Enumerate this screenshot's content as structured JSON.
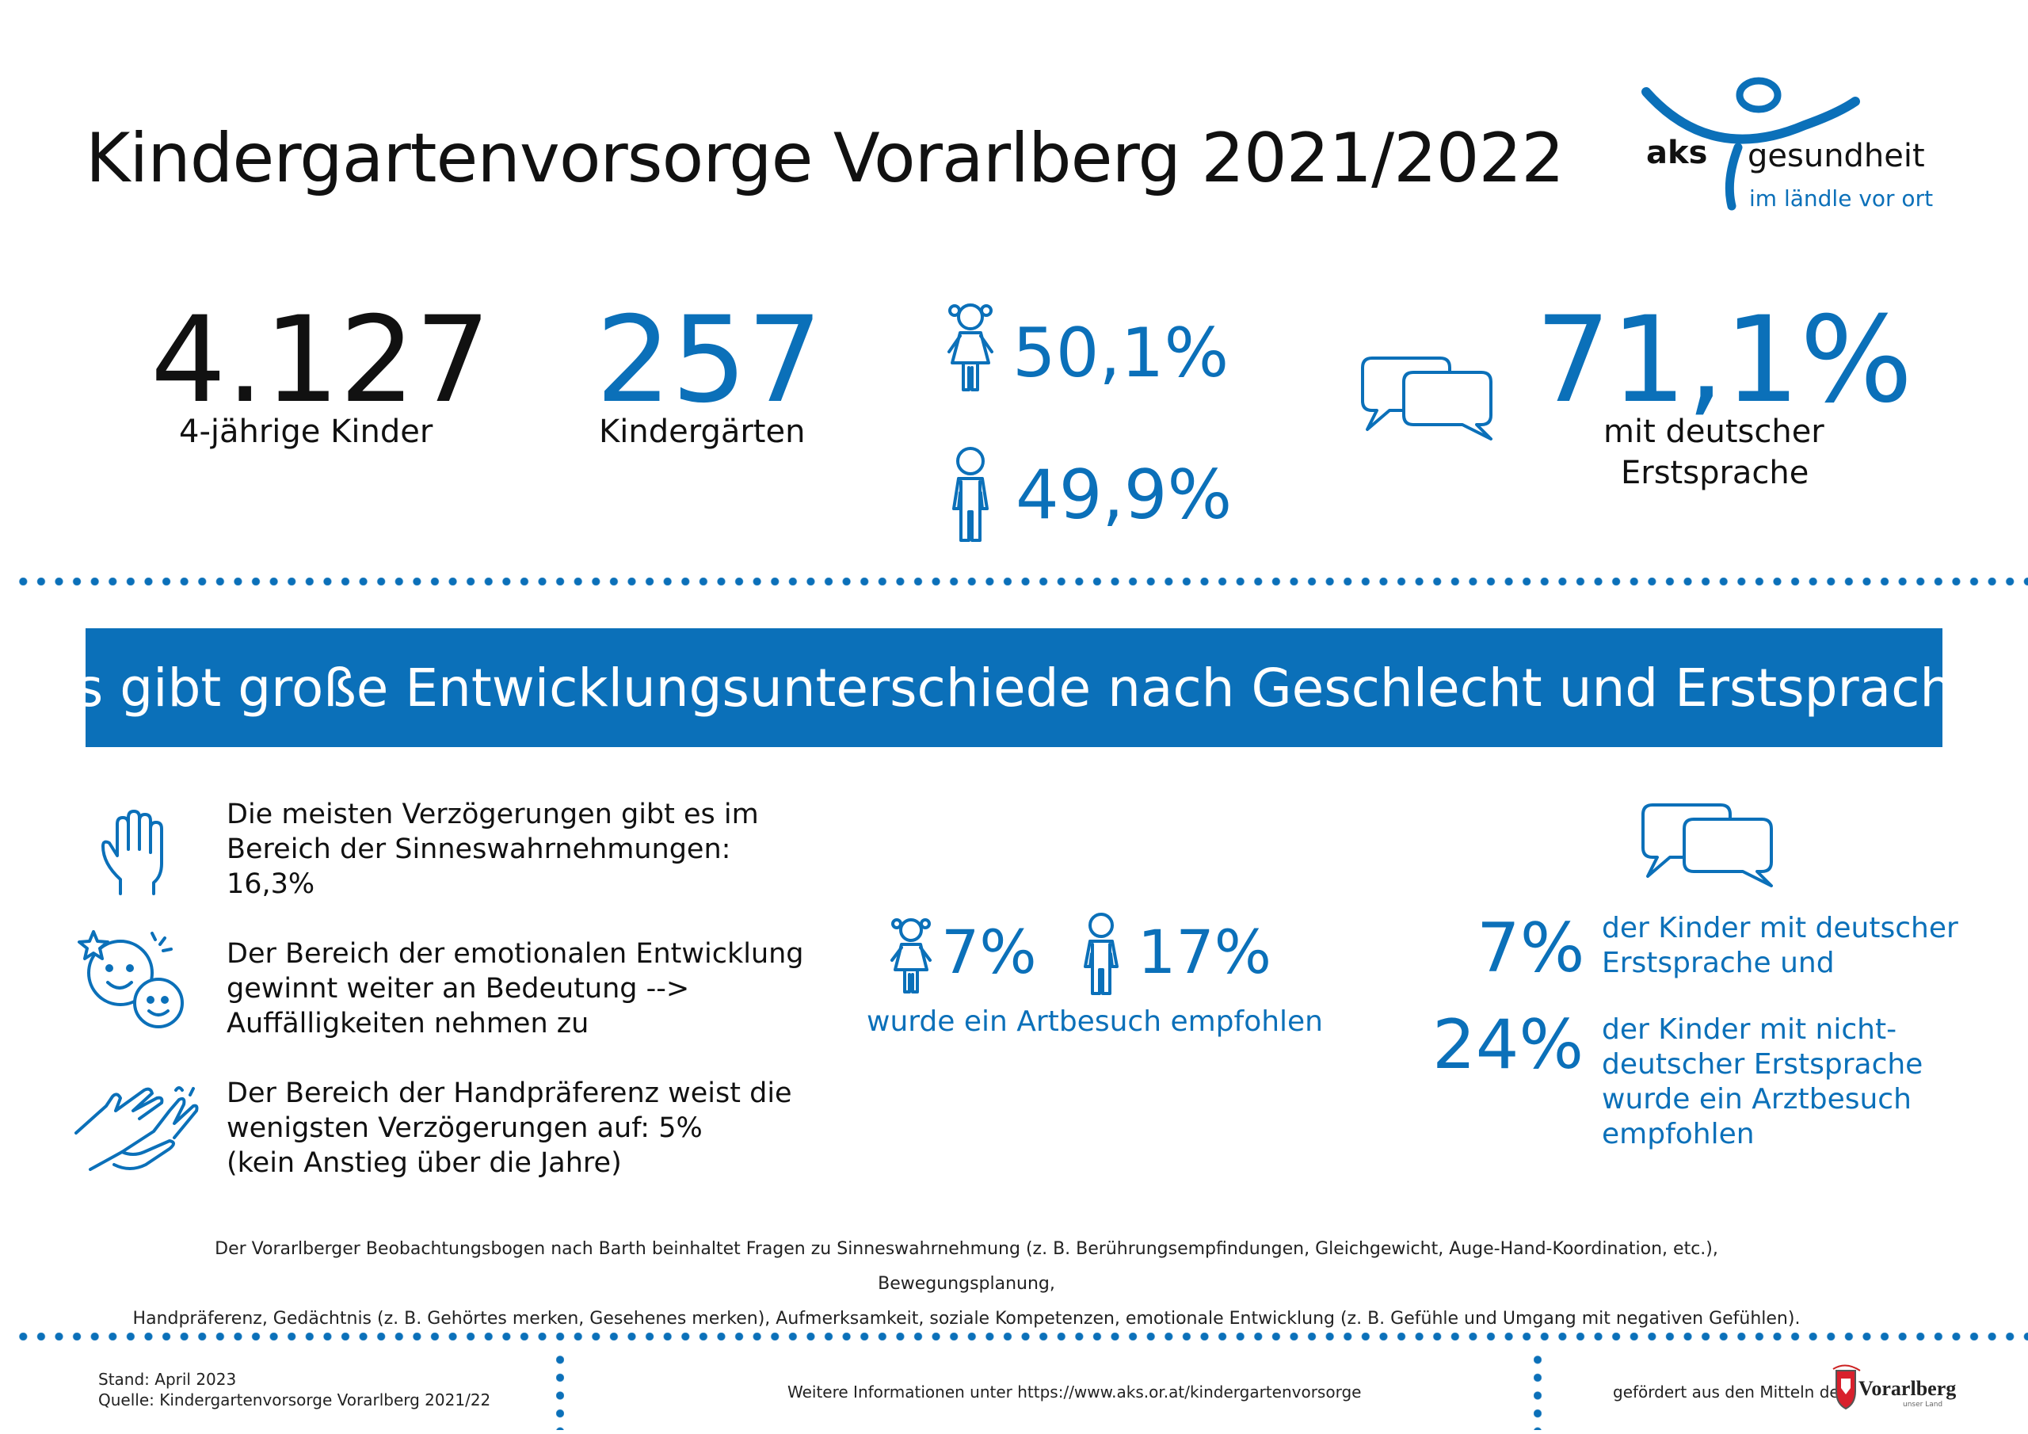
{
  "title": "Kindergartenvorsorge Vorarlberg 2021/2022",
  "logo": {
    "brand": "aks",
    "name": "gesundheit",
    "tagline": "im ländle vor ort"
  },
  "stats": {
    "children_value": "4.127",
    "children_label": "4-jährige Kinder",
    "kindergartens_value": "257",
    "kindergartens_label": "Kindergärten",
    "girls_pct": "50,1%",
    "boys_pct": "49,9%",
    "german_value": "71,1%",
    "german_label_1": "mit deutscher",
    "german_label_2": "Erstsprache"
  },
  "banner": "Es gibt große Entwicklungsunterschiede nach Geschlecht und Erstsprache",
  "findings": [
    {
      "icon": "hand-icon",
      "lines": [
        "Die meisten Verzögerungen gibt es im",
        "Bereich der Sinneswahrnehmungen:",
        "16,3%"
      ]
    },
    {
      "icon": "faces-icon",
      "lines": [
        "Der Bereich der emotionalen Entwicklung",
        "gewinnt weiter an Bedeutung -->",
        "Auffälligkeiten nehmen zu"
      ]
    },
    {
      "icon": "handshake-icon",
      "lines": [
        "Der Bereich der Handpräferenz weist die",
        "wenigsten Verzögerungen auf: 5%",
        "(kein Anstieg über die Jahre)"
      ]
    }
  ],
  "referral": {
    "girls_pct": "7%",
    "boys_pct": "17%",
    "caption": "wurde ein Artbesuch empfohlen"
  },
  "language_referral": {
    "german_pct": "7%",
    "german_lines": [
      "der Kinder mit deutscher",
      "Erstsprache und"
    ],
    "nongerman_pct": "24%",
    "nongerman_lines": [
      "der Kinder mit nicht-",
      "deutscher Erstsprache",
      "wurde ein Arztbesuch",
      "empfohlen"
    ]
  },
  "note_lines": [
    "Der Vorarlberger Beobachtungsbogen nach Barth beinhaltet Fragen zu Sinneswahrnehmung (z. B. Berührungsempfindungen, Gleichgewicht, Auge-Hand-Koordination, etc.),  Bewegungsplanung,",
    "Handpräferenz, Gedächtnis (z. B. Gehörtes merken, Gesehenes merken), Aufmerksamkeit,  soziale Kompetenzen, emotionale Entwicklung (z. B. Gefühle und Umgang mit negativen Gefühlen)."
  ],
  "footer": {
    "stand": "Stand: April 2023",
    "source": "Quelle: Kindergartenvorsorge Vorarlberg 2021/22",
    "more_info": "Weitere Informationen unter https://www.aks.or.at/kindergartenvorsorge",
    "funded": "gefördert aus den Mitteln des",
    "funder_logo": "Vorarlberg",
    "funder_tagline": "unser Land"
  },
  "colors": {
    "accent": "#0b70b9",
    "banner_text": "#ffffff",
    "text": "#111111"
  }
}
